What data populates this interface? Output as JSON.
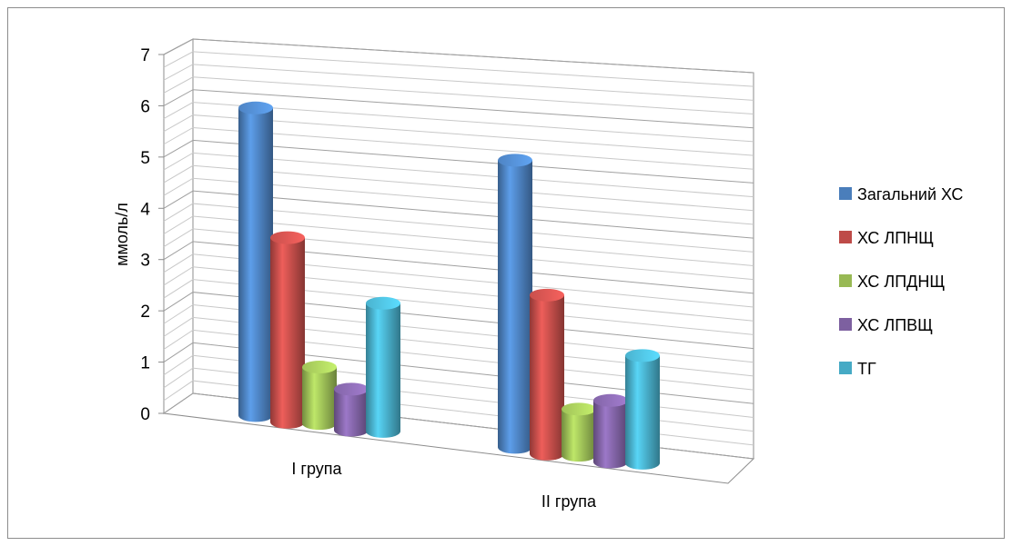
{
  "chart_data": {
    "type": "bar",
    "title": "",
    "xlabel": "",
    "ylabel": "ммоль/л",
    "ylim": [
      0,
      7
    ],
    "yticks": [
      0,
      1,
      2,
      3,
      4,
      5,
      6,
      7
    ],
    "categories": [
      "I група",
      "II група"
    ],
    "grid": true,
    "legend_position": "right",
    "series": [
      {
        "name": "Загальний ХС",
        "color": "#4A7EBB",
        "values": [
          6.0,
          5.6
        ]
      },
      {
        "name": "ХС ЛПНЩ",
        "color": "#BE4B48",
        "values": [
          3.6,
          3.1
        ]
      },
      {
        "name": "ХС ЛПДНЩ",
        "color": "#98B954",
        "values": [
          1.1,
          0.9
        ]
      },
      {
        "name": "ХС ЛПВЩ",
        "color": "#7D60A0",
        "values": [
          0.8,
          1.2
        ]
      },
      {
        "name": "ТГ",
        "color": "#46AAC5",
        "values": [
          2.5,
          2.1
        ]
      }
    ]
  }
}
